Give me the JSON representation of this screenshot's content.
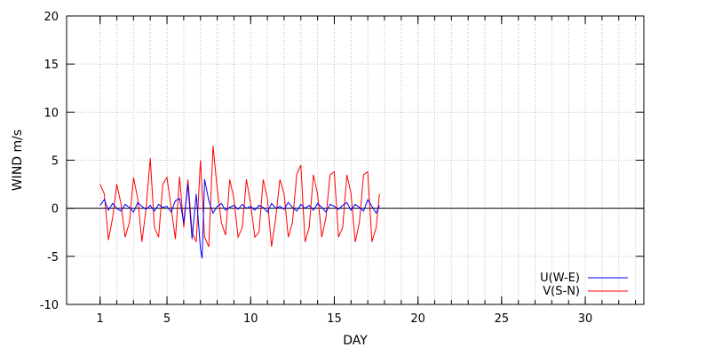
{
  "chart_data": {
    "type": "line",
    "xlabel": "DAY",
    "ylabel": "WIND m/s",
    "xlim": [
      -1,
      33.5
    ],
    "ylim": [
      -10,
      20
    ],
    "xticks": [
      1,
      5,
      10,
      15,
      20,
      25,
      30
    ],
    "xticks_minor": [
      1,
      2,
      3,
      4,
      5,
      6,
      7,
      8,
      9,
      10,
      11,
      12,
      13,
      14,
      15,
      16,
      17,
      18,
      19,
      20,
      21,
      22,
      23,
      24,
      25,
      26,
      27,
      28,
      29,
      30,
      31,
      32,
      33
    ],
    "yticks": [
      -10,
      -5,
      0,
      5,
      10,
      15,
      20
    ],
    "grid": true,
    "zero_line": true,
    "legend_position": "bottom-right",
    "series": [
      {
        "name": "U(W-E)",
        "color": "#0000ff",
        "x": [
          1.0,
          1.25,
          1.5,
          1.75,
          2.0,
          2.25,
          2.5,
          2.75,
          3.0,
          3.25,
          3.5,
          3.75,
          4.0,
          4.25,
          4.5,
          4.75,
          5.0,
          5.25,
          5.5,
          5.75,
          6.0,
          6.25,
          6.5,
          6.75,
          7.0,
          7.1,
          7.25,
          7.5,
          7.75,
          8.0,
          8.25,
          8.5,
          8.75,
          9.0,
          9.25,
          9.5,
          9.75,
          10.0,
          10.25,
          10.5,
          10.75,
          11.0,
          11.25,
          11.5,
          11.75,
          12.0,
          12.25,
          12.5,
          12.75,
          13.0,
          13.25,
          13.5,
          13.75,
          14.0,
          14.25,
          14.5,
          14.75,
          15.0,
          15.25,
          15.5,
          15.75,
          16.0,
          16.25,
          16.5,
          16.75,
          17.0,
          17.25,
          17.5,
          17.7
        ],
        "values": [
          0.3,
          0.9,
          -0.2,
          0.5,
          0.0,
          -0.3,
          0.4,
          0.1,
          -0.4,
          0.6,
          0.2,
          -0.1,
          0.3,
          -0.3,
          0.4,
          0.1,
          0.2,
          -0.4,
          0.8,
          1.0,
          -1.5,
          2.5,
          -3.2,
          1.5,
          -4.2,
          -5.2,
          3.0,
          0.8,
          -0.5,
          0.2,
          0.5,
          -0.2,
          0.1,
          0.3,
          -0.1,
          0.4,
          0.0,
          0.2,
          -0.2,
          0.3,
          0.1,
          -0.4,
          0.5,
          0.0,
          0.2,
          -0.1,
          0.6,
          0.1,
          -0.3,
          0.4,
          0.0,
          0.3,
          -0.2,
          0.5,
          0.1,
          -0.4,
          0.4,
          0.2,
          -0.1,
          0.3,
          0.6,
          -0.2,
          0.4,
          0.1,
          -0.3,
          0.9,
          0.2,
          -0.5,
          0.3
        ]
      },
      {
        "name": "V(S-N)",
        "color": "#ff0000",
        "x": [
          1.0,
          1.25,
          1.5,
          1.75,
          2.0,
          2.25,
          2.5,
          2.75,
          3.0,
          3.25,
          3.5,
          3.75,
          4.0,
          4.25,
          4.5,
          4.75,
          5.0,
          5.25,
          5.5,
          5.75,
          6.0,
          6.25,
          6.5,
          6.75,
          7.0,
          7.25,
          7.5,
          7.75,
          8.0,
          8.25,
          8.5,
          8.75,
          9.0,
          9.25,
          9.5,
          9.75,
          10.0,
          10.25,
          10.5,
          10.75,
          11.0,
          11.25,
          11.5,
          11.75,
          12.0,
          12.25,
          12.5,
          12.75,
          13.0,
          13.25,
          13.5,
          13.75,
          14.0,
          14.25,
          14.5,
          14.75,
          15.0,
          15.25,
          15.5,
          15.75,
          16.0,
          16.25,
          16.5,
          16.75,
          17.0,
          17.25,
          17.5,
          17.7
        ],
        "values": [
          2.5,
          1.5,
          -3.3,
          -1.0,
          2.5,
          0.5,
          -3.0,
          -1.5,
          3.2,
          1.0,
          -3.5,
          0.0,
          5.2,
          -2.0,
          -3.0,
          2.5,
          3.2,
          0.0,
          -3.2,
          3.3,
          -2.0,
          3.0,
          -2.5,
          -3.5,
          5.0,
          -3.0,
          -4.0,
          6.5,
          2.0,
          -1.5,
          -2.8,
          3.0,
          1.0,
          -3.0,
          -2.0,
          3.0,
          0.5,
          -3.0,
          -2.5,
          3.0,
          1.0,
          -4.0,
          -1.0,
          3.0,
          1.5,
          -3.0,
          -1.5,
          3.5,
          4.5,
          -3.5,
          -2.0,
          3.5,
          1.5,
          -3.0,
          -1.0,
          3.5,
          3.8,
          -3.0,
          -2.0,
          3.5,
          1.5,
          -3.5,
          -1.5,
          3.5,
          3.8,
          -3.5,
          -2.0,
          1.5
        ]
      }
    ]
  }
}
